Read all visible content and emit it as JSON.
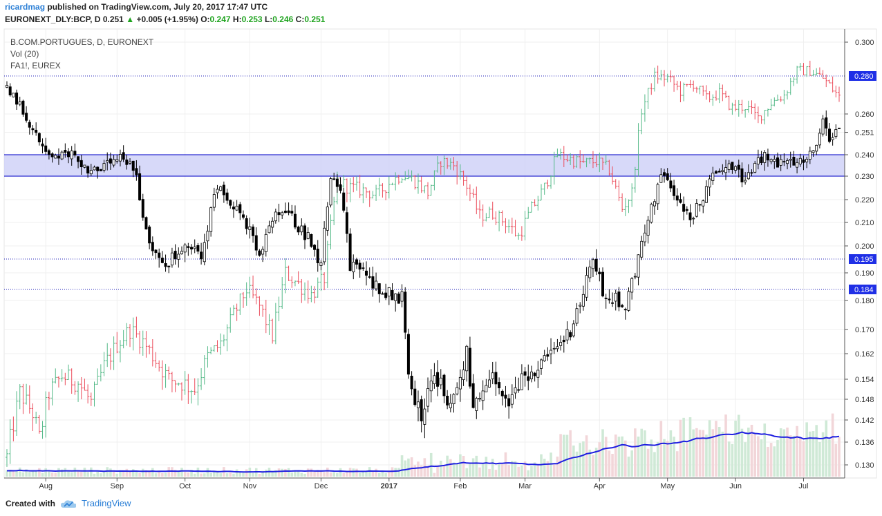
{
  "header": {
    "user": "ricardmag",
    "published_text": "published on TradingView.com, July 20, 2017 17:47 UTC",
    "symbol": "EURONEXT_DLY:BCP, D",
    "last": "0.251",
    "change": "+0.005 (+1.95%)",
    "o_label": "O:",
    "o_value": "0.247",
    "h_label": "H:",
    "h_value": "0.253",
    "l_label": "L:",
    "l_value": "0.246",
    "c_label": "C:",
    "c_value": "0.251"
  },
  "legend": {
    "main": "B.COM.PORTUGUES, D, EURONEXT",
    "volume": "Vol (20)",
    "overlay": "FA1!, EUREX"
  },
  "footer": {
    "created_with": "Created with",
    "brand": "TradingView"
  },
  "colors": {
    "up": "#53b987",
    "down": "#eb4d5c",
    "bar_black": "#000000",
    "zone_fill": "#cdd0f7",
    "zone_line": "#2a2ad0",
    "level_line": "#1f1fb8",
    "vol_ma": "#1f1fe0",
    "label_bg": "#1f2fe6",
    "brand": "#2b7fd6"
  },
  "chart_data": {
    "type": "candlestick",
    "x_labels": [
      "Aug",
      "Sep",
      "Oct",
      "Nov",
      "Dec",
      "2017",
      "Feb",
      "Mar",
      "Apr",
      "May",
      "Jun",
      "Jul"
    ],
    "y_ticks": [
      "0.300",
      "0.260",
      "0.251",
      "0.240",
      "0.230",
      "0.220",
      "0.210",
      "0.200",
      "0.190",
      "0.180",
      "0.170",
      "0.162",
      "0.154",
      "0.148",
      "0.142",
      "0.136",
      "0.130"
    ],
    "y_ticks_values": [
      0.3,
      0.26,
      0.251,
      0.24,
      0.23,
      0.22,
      0.21,
      0.2,
      0.19,
      0.18,
      0.17,
      0.162,
      0.154,
      0.148,
      0.142,
      0.136,
      0.13
    ],
    "last_price_label": "0.251",
    "horizontal_levels": [
      {
        "value": 0.28,
        "label": "0.280",
        "style": "dotted"
      },
      {
        "value": 0.195,
        "label": "0.195",
        "style": "dotted"
      },
      {
        "value": 0.184,
        "label": "0.184",
        "style": "dotted"
      }
    ],
    "support_zone": {
      "low": 0.23,
      "high": 0.24
    },
    "main_series": {
      "name": "B.COM.PORTUGUES",
      "style": "black candles",
      "close_anchors": [
        [
          0,
          0.275
        ],
        [
          5,
          0.262
        ],
        [
          10,
          0.246
        ],
        [
          15,
          0.238
        ],
        [
          20,
          0.241
        ],
        [
          25,
          0.233
        ],
        [
          30,
          0.234
        ],
        [
          35,
          0.238
        ],
        [
          40,
          0.232
        ],
        [
          42,
          0.212
        ],
        [
          45,
          0.198
        ],
        [
          48,
          0.193
        ],
        [
          52,
          0.196
        ],
        [
          56,
          0.199
        ],
        [
          60,
          0.197
        ],
        [
          65,
          0.226
        ],
        [
          68,
          0.222
        ],
        [
          72,
          0.214
        ],
        [
          75,
          0.206
        ],
        [
          78,
          0.195
        ],
        [
          82,
          0.211
        ],
        [
          86,
          0.216
        ],
        [
          90,
          0.208
        ],
        [
          94,
          0.202
        ],
        [
          97,
          0.193
        ],
        [
          100,
          0.23
        ],
        [
          103,
          0.226
        ],
        [
          106,
          0.192
        ],
        [
          110,
          0.191
        ],
        [
          113,
          0.186
        ],
        [
          116,
          0.184
        ],
        [
          119,
          0.182
        ],
        [
          122,
          0.181
        ],
        [
          124,
          0.158
        ],
        [
          126,
          0.148
        ],
        [
          128,
          0.143
        ],
        [
          131,
          0.155
        ],
        [
          134,
          0.152
        ],
        [
          137,
          0.146
        ],
        [
          140,
          0.155
        ],
        [
          142,
          0.162
        ],
        [
          144,
          0.146
        ],
        [
          147,
          0.148
        ],
        [
          150,
          0.155
        ],
        [
          153,
          0.148
        ],
        [
          155,
          0.146
        ],
        [
          158,
          0.152
        ],
        [
          162,
          0.157
        ],
        [
          166,
          0.159
        ],
        [
          170,
          0.164
        ],
        [
          174,
          0.17
        ],
        [
          178,
          0.182
        ],
        [
          181,
          0.196
        ],
        [
          184,
          0.183
        ],
        [
          187,
          0.181
        ],
        [
          191,
          0.178
        ],
        [
          193,
          0.186
        ],
        [
          196,
          0.2
        ],
        [
          200,
          0.221
        ],
        [
          202,
          0.23
        ],
        [
          205,
          0.226
        ],
        [
          208,
          0.218
        ],
        [
          211,
          0.212
        ],
        [
          214,
          0.218
        ],
        [
          218,
          0.23
        ],
        [
          222,
          0.236
        ],
        [
          225,
          0.235
        ],
        [
          228,
          0.226
        ],
        [
          231,
          0.236
        ],
        [
          234,
          0.239
        ],
        [
          238,
          0.236
        ],
        [
          241,
          0.238
        ],
        [
          244,
          0.237
        ],
        [
          248,
          0.24
        ],
        [
          250,
          0.246
        ],
        [
          252,
          0.26
        ],
        [
          254,
          0.248
        ],
        [
          257,
          0.251
        ]
      ]
    },
    "overlay_series": {
      "name": "FA1!, EUREX",
      "style": "green/red OHLC bars",
      "close_anchors": [
        [
          0,
          0.132
        ],
        [
          4,
          0.15
        ],
        [
          8,
          0.144
        ],
        [
          10,
          0.137
        ],
        [
          13,
          0.15
        ],
        [
          17,
          0.155
        ],
        [
          22,
          0.153
        ],
        [
          26,
          0.147
        ],
        [
          30,
          0.158
        ],
        [
          34,
          0.165
        ],
        [
          38,
          0.17
        ],
        [
          42,
          0.166
        ],
        [
          46,
          0.16
        ],
        [
          50,
          0.154
        ],
        [
          54,
          0.153
        ],
        [
          58,
          0.151
        ],
        [
          62,
          0.161
        ],
        [
          66,
          0.165
        ],
        [
          70,
          0.175
        ],
        [
          74,
          0.184
        ],
        [
          78,
          0.178
        ],
        [
          82,
          0.168
        ],
        [
          86,
          0.19
        ],
        [
          90,
          0.186
        ],
        [
          94,
          0.182
        ],
        [
          98,
          0.188
        ],
        [
          102,
          0.228
        ],
        [
          106,
          0.225
        ],
        [
          110,
          0.224
        ],
        [
          114,
          0.222
        ],
        [
          118,
          0.227
        ],
        [
          122,
          0.231
        ],
        [
          126,
          0.228
        ],
        [
          130,
          0.223
        ],
        [
          134,
          0.237
        ],
        [
          138,
          0.235
        ],
        [
          142,
          0.226
        ],
        [
          146,
          0.213
        ],
        [
          150,
          0.214
        ],
        [
          154,
          0.21
        ],
        [
          158,
          0.204
        ],
        [
          162,
          0.216
        ],
        [
          166,
          0.225
        ],
        [
          170,
          0.24
        ],
        [
          174,
          0.238
        ],
        [
          178,
          0.236
        ],
        [
          182,
          0.237
        ],
        [
          186,
          0.233
        ],
        [
          190,
          0.216
        ],
        [
          193,
          0.223
        ],
        [
          196,
          0.262
        ],
        [
          200,
          0.28
        ],
        [
          204,
          0.279
        ],
        [
          208,
          0.272
        ],
        [
          212,
          0.276
        ],
        [
          216,
          0.268
        ],
        [
          220,
          0.271
        ],
        [
          224,
          0.263
        ],
        [
          228,
          0.264
        ],
        [
          232,
          0.258
        ],
        [
          236,
          0.266
        ],
        [
          240,
          0.27
        ],
        [
          244,
          0.283
        ],
        [
          248,
          0.283
        ],
        [
          252,
          0.279
        ],
        [
          257,
          0.269
        ]
      ]
    },
    "volume_series": {
      "name": "Vol (20)",
      "ma_line": true
    }
  }
}
